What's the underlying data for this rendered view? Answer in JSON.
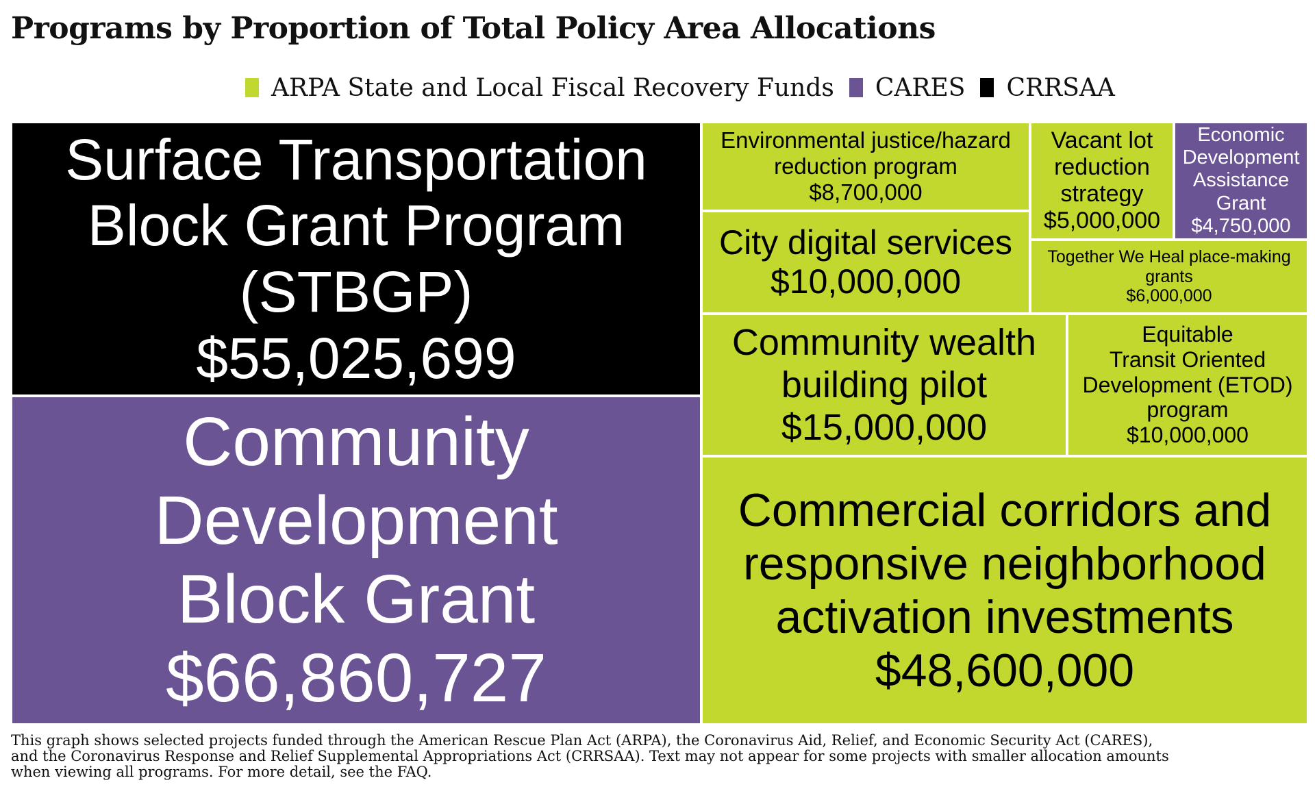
{
  "title": "Programs by Proportion of Total Policy Area Allocations",
  "legend": [
    {
      "label": "ARPA State and Local Fiscal Recovery Funds",
      "color": "#c2d82e"
    },
    {
      "label": "CARES",
      "color": "#6a5494"
    },
    {
      "label": "CRRSAA",
      "color": "#000000"
    }
  ],
  "chart_data": {
    "type": "treemap",
    "title": "Programs by Proportion of Total Policy Area Allocations",
    "items": [
      {
        "label": "Surface Transportation Block Grant Program (STBGP)",
        "value_label": "$55,025,699",
        "value": 55025699,
        "fund": "CRRSAA"
      },
      {
        "label": "Community Development Block Grant",
        "value_label": "$66,860,727",
        "value": 66860727,
        "fund": "CARES"
      },
      {
        "label": "Environmental justice/hazard reduction program",
        "value_label": "$8,700,000",
        "value": 8700000,
        "fund": "ARPA State and Local Fiscal Recovery Funds"
      },
      {
        "label": "Vacant lot reduction strategy",
        "value_label": "$5,000,000",
        "value": 5000000,
        "fund": "ARPA State and Local Fiscal Recovery Funds"
      },
      {
        "label": "Economic Development Assistance Grant",
        "value_label": "$4,750,000",
        "value": 4750000,
        "fund": "CARES"
      },
      {
        "label": "City digital services",
        "value_label": "$10,000,000",
        "value": 10000000,
        "fund": "ARPA State and Local Fiscal Recovery Funds"
      },
      {
        "label": "Together We Heal place-making grants",
        "value_label": "$6,000,000",
        "value": 6000000,
        "fund": "ARPA State and Local Fiscal Recovery Funds"
      },
      {
        "label": "Community wealth building pilot",
        "value_label": "$15,000,000",
        "value": 15000000,
        "fund": "ARPA State and Local Fiscal Recovery Funds"
      },
      {
        "label": "Equitable Transit Oriented Development (ETOD) program",
        "value_label": "$10,000,000",
        "value": 10000000,
        "fund": "ARPA State and Local Fiscal Recovery Funds"
      },
      {
        "label": "Commercial corridors and responsive neighborhood activation investments",
        "value_label": "$48,600,000",
        "value": 48600000,
        "fund": "ARPA State and Local Fiscal Recovery Funds"
      }
    ]
  },
  "note_lines": [
    "This graph shows selected projects funded through the American Rescue Plan Act (ARPA), the Coronavirus Aid, Relief, and Economic Security Act (CARES),",
    "and the Coronavirus Response and Relief Supplemental Appropriations Act (CRRSAA). Text may not appear for some projects with smaller allocation amounts",
    " when viewing all programs. For more detail, see the FAQ."
  ]
}
